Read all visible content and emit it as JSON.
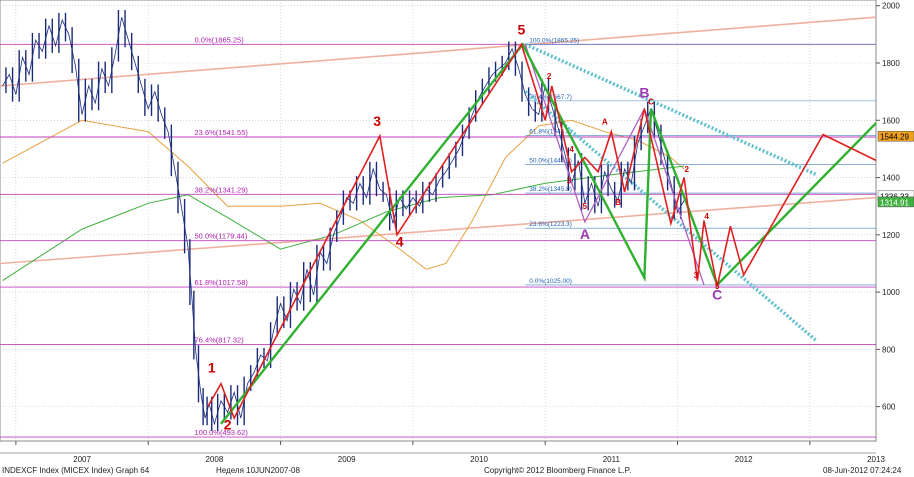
{
  "chart_data": {
    "type": "line",
    "title": "",
    "xlabel": "",
    "ylabel": "",
    "ylim": [
      480,
      2020
    ],
    "xlim": [
      2006.88,
      2013.5
    ],
    "x_ticks": [
      {
        "value": 2007,
        "label": "2007"
      },
      {
        "value": 2008,
        "label": "2008"
      },
      {
        "value": 2009,
        "label": "2009"
      },
      {
        "value": 2010,
        "label": "2010"
      },
      {
        "value": 2011,
        "label": "2011"
      },
      {
        "value": 2012,
        "label": "2012"
      },
      {
        "value": 2013,
        "label": "2013"
      }
    ],
    "y_ticks": [
      600,
      800,
      1000,
      1200,
      1400,
      1600,
      1800,
      2000
    ],
    "price_series": {
      "name": "",
      "color": "#1a2a7a",
      "points": [
        [
          2006.9,
          1720
        ],
        [
          2006.95,
          1760
        ],
        [
          2007.0,
          1690
        ],
        [
          2007.05,
          1820
        ],
        [
          2007.1,
          1760
        ],
        [
          2007.15,
          1880
        ],
        [
          2007.2,
          1840
        ],
        [
          2007.25,
          1930
        ],
        [
          2007.3,
          1860
        ],
        [
          2007.35,
          1950
        ],
        [
          2007.4,
          1900
        ],
        [
          2007.45,
          1790
        ],
        [
          2007.5,
          1620
        ],
        [
          2007.55,
          1720
        ],
        [
          2007.6,
          1660
        ],
        [
          2007.65,
          1780
        ],
        [
          2007.7,
          1720
        ],
        [
          2007.75,
          1830
        ],
        [
          2007.8,
          1960
        ],
        [
          2007.85,
          1880
        ],
        [
          2007.9,
          1800
        ],
        [
          2007.95,
          1720
        ],
        [
          2008.0,
          1640
        ],
        [
          2008.05,
          1700
        ],
        [
          2008.1,
          1620
        ],
        [
          2008.15,
          1560
        ],
        [
          2008.2,
          1430
        ],
        [
          2008.25,
          1300
        ],
        [
          2008.3,
          1160
        ],
        [
          2008.33,
          980
        ],
        [
          2008.36,
          790
        ],
        [
          2008.4,
          640
        ],
        [
          2008.43,
          560
        ],
        [
          2008.46,
          610
        ],
        [
          2008.5,
          540
        ],
        [
          2008.55,
          620
        ],
        [
          2008.6,
          580
        ],
        [
          2008.65,
          650
        ],
        [
          2008.7,
          560
        ],
        [
          2008.75,
          680
        ],
        [
          2008.8,
          720
        ],
        [
          2008.85,
          780
        ],
        [
          2008.9,
          760
        ],
        [
          2008.95,
          870
        ],
        [
          2009.0,
          960
        ],
        [
          2009.05,
          900
        ],
        [
          2009.1,
          1010
        ],
        [
          2009.15,
          960
        ],
        [
          2009.2,
          1080
        ],
        [
          2009.25,
          990
        ],
        [
          2009.3,
          1140
        ],
        [
          2009.35,
          1100
        ],
        [
          2009.4,
          1200
        ],
        [
          2009.45,
          1260
        ],
        [
          2009.5,
          1330
        ],
        [
          2009.55,
          1310
        ],
        [
          2009.6,
          1380
        ],
        [
          2009.65,
          1330
        ],
        [
          2009.7,
          1430
        ],
        [
          2009.75,
          1360
        ],
        [
          2009.8,
          1340
        ],
        [
          2009.85,
          1240
        ],
        [
          2009.9,
          1330
        ],
        [
          2009.95,
          1290
        ],
        [
          2010.0,
          1330
        ],
        [
          2010.05,
          1300
        ],
        [
          2010.1,
          1360
        ],
        [
          2010.15,
          1340
        ],
        [
          2010.2,
          1390
        ],
        [
          2010.25,
          1420
        ],
        [
          2010.3,
          1460
        ],
        [
          2010.35,
          1500
        ],
        [
          2010.4,
          1560
        ],
        [
          2010.45,
          1620
        ],
        [
          2010.5,
          1680
        ],
        [
          2010.55,
          1720
        ],
        [
          2010.6,
          1760
        ],
        [
          2010.65,
          1780
        ],
        [
          2010.7,
          1800
        ],
        [
          2010.75,
          1850
        ],
        [
          2010.8,
          1780
        ],
        [
          2010.85,
          1690
        ],
        [
          2010.9,
          1640
        ],
        [
          2010.95,
          1620
        ],
        [
          2011.0,
          1720
        ],
        [
          2011.05,
          1650
        ],
        [
          2011.1,
          1570
        ],
        [
          2011.15,
          1480
        ],
        [
          2011.2,
          1380
        ],
        [
          2011.25,
          1460
        ],
        [
          2011.3,
          1310
        ],
        [
          2011.35,
          1380
        ],
        [
          2011.4,
          1300
        ],
        [
          2011.45,
          1420
        ],
        [
          2011.5,
          1360
        ],
        [
          2011.55,
          1320
        ],
        [
          2011.6,
          1430
        ],
        [
          2011.65,
          1380
        ],
        [
          2011.7,
          1520
        ],
        [
          2011.75,
          1580
        ],
        [
          2011.8,
          1640
        ],
        [
          2011.85,
          1560
        ],
        [
          2011.9,
          1470
        ],
        [
          2011.95,
          1380
        ],
        [
          2012.0,
          1280
        ],
        [
          2012.05,
          1320
        ]
      ]
    },
    "moving_averages": [
      {
        "name": "",
        "color": "#e8a040",
        "points": [
          [
            2006.9,
            1450
          ],
          [
            2007.5,
            1600
          ],
          [
            2008.0,
            1560
          ],
          [
            2008.3,
            1440
          ],
          [
            2008.6,
            1300
          ],
          [
            2009.0,
            1300
          ],
          [
            2009.3,
            1310
          ],
          [
            2009.6,
            1250
          ],
          [
            2009.9,
            1150
          ],
          [
            2010.1,
            1080
          ],
          [
            2010.25,
            1100
          ],
          [
            2010.45,
            1250
          ],
          [
            2010.7,
            1470
          ],
          [
            2010.95,
            1580
          ],
          [
            2011.2,
            1600
          ],
          [
            2011.45,
            1560
          ],
          [
            2011.7,
            1530
          ],
          [
            2011.95,
            1470
          ],
          [
            2012.05,
            1430
          ]
        ]
      },
      {
        "name": "",
        "color": "#40b040",
        "points": [
          [
            2006.9,
            1040
          ],
          [
            2007.5,
            1220
          ],
          [
            2008.0,
            1310
          ],
          [
            2008.3,
            1340
          ],
          [
            2008.6,
            1260
          ],
          [
            2009.0,
            1150
          ],
          [
            2009.4,
            1200
          ],
          [
            2009.8,
            1280
          ],
          [
            2010.2,
            1330
          ],
          [
            2010.6,
            1340
          ],
          [
            2011.0,
            1380
          ],
          [
            2011.5,
            1410
          ],
          [
            2012.05,
            1440
          ]
        ]
      }
    ],
    "trendlines": [
      {
        "name": "",
        "color": "#f0b0a0",
        "points": [
          [
            2006.88,
            1100
          ],
          [
            2013.5,
            1330
          ]
        ]
      },
      {
        "name": "",
        "color": "#f0b0a0",
        "points": [
          [
            2006.88,
            1720
          ],
          [
            2013.5,
            1960
          ]
        ]
      }
    ],
    "fibonacci_levels": [
      {
        "label": "0.0%(1865.25)",
        "value": 1865.25
      },
      {
        "label": "23.6%(1541.55)",
        "value": 1541.55
      },
      {
        "label": "38.2%(1341.29)",
        "value": 1341.29
      },
      {
        "label": "50.0%(1179.44)",
        "value": 1179.44
      },
      {
        "label": "61.8%(1017.58)",
        "value": 1017.58
      },
      {
        "label": "76.4%(817.32)",
        "value": 817.32
      },
      {
        "label": "100.0%(493.62)",
        "value": 493.62
      }
    ],
    "fibonacci_levels_2": [
      {
        "label": "100.0%(1865.25)",
        "value": 1865.25
      },
      {
        "label": "76.4%(1667.7)",
        "value": 1667.7
      },
      {
        "label": "61.8%(1546.6)",
        "value": 1546.6
      },
      {
        "label": "50.0%(1445.3)",
        "value": 1445.3
      },
      {
        "label": "38.2%(1345.8)",
        "value": 1345.8
      },
      {
        "label": "23.6%(1223.3)",
        "value": 1223.3
      },
      {
        "label": "0.0%(1025.00)",
        "value": 1025.0
      }
    ],
    "green_wave_path": [
      [
        2008.55,
        540
      ],
      [
        2010.83,
        1865
      ],
      [
        2011.75,
        1050
      ],
      [
        2011.8,
        1640
      ],
      [
        2012.3,
        1025
      ],
      [
        2013.5,
        1590
      ]
    ],
    "red_wave_path": [
      [
        2008.45,
        600
      ],
      [
        2008.55,
        680
      ],
      [
        2008.65,
        560
      ],
      [
        2009.75,
        1545
      ],
      [
        2009.88,
        1200
      ],
      [
        2010.82,
        1865
      ],
      [
        2011.0,
        1600
      ],
      [
        2011.05,
        1720
      ],
      [
        2011.2,
        1420
      ],
      [
        2011.3,
        1470
      ],
      [
        2011.4,
        1420
      ],
      [
        2011.5,
        1560
      ],
      [
        2011.6,
        1350
      ],
      [
        2011.75,
        1640
      ],
      [
        2011.95,
        1240
      ],
      [
        2012.05,
        1400
      ],
      [
        2012.15,
        1040
      ],
      [
        2012.2,
        1250
      ],
      [
        2012.3,
        1020
      ],
      [
        2012.4,
        1230
      ],
      [
        2012.5,
        1060
      ],
      [
        2013.1,
        1550
      ],
      [
        2013.5,
        1460
      ]
    ],
    "violet_wave_path": [
      [
        2010.85,
        1865
      ],
      [
        2011.3,
        1245
      ],
      [
        2011.75,
        1640
      ],
      [
        2012.2,
        1025
      ]
    ],
    "channel_lines": [
      {
        "color": "#60c0d0",
        "points": [
          [
            2010.85,
            1865
          ],
          [
            2013.05,
            1410
          ]
        ]
      },
      {
        "color": "#60c0d0",
        "points": [
          [
            2010.85,
            1700
          ],
          [
            2013.05,
            830
          ]
        ]
      }
    ],
    "wave_labels": [
      {
        "text": "1",
        "x": 2008.48,
        "y": 720,
        "color": "#cc0000"
      },
      {
        "text": "2",
        "x": 2008.6,
        "y": 520,
        "color": "#cc0000"
      },
      {
        "text": "3",
        "x": 2009.73,
        "y": 1580,
        "color": "#cc0000"
      },
      {
        "text": "4",
        "x": 2009.9,
        "y": 1160,
        "color": "#cc0000"
      },
      {
        "text": "5",
        "x": 2010.82,
        "y": 1900,
        "color": "#cc0000"
      },
      {
        "text": "A",
        "x": 2011.3,
        "y": 1185,
        "color": "#9a3ab0"
      },
      {
        "text": "B",
        "x": 2011.75,
        "y": 1680,
        "color": "#9a3ab0"
      },
      {
        "text": "C",
        "x": 2012.3,
        "y": 975,
        "color": "#9a3ab0"
      }
    ],
    "minor_labels": [
      {
        "text": "2",
        "x": 2011.03,
        "y": 1745
      },
      {
        "text": "3",
        "x": 2011.18,
        "y": 1380
      },
      {
        "text": "4",
        "x": 2011.2,
        "y": 1490
      },
      {
        "text": "5",
        "x": 2011.3,
        "y": 1290
      },
      {
        "text": "A",
        "x": 2011.45,
        "y": 1585
      },
      {
        "text": "B",
        "x": 2011.55,
        "y": 1305
      },
      {
        "text": "C",
        "x": 2011.8,
        "y": 1655
      },
      {
        "text": "2",
        "x": 2012.07,
        "y": 1420
      },
      {
        "text": "3",
        "x": 2012.14,
        "y": 1050
      },
      {
        "text": "4",
        "x": 2012.22,
        "y": 1255
      },
      {
        "text": "5",
        "x": 2012.3,
        "y": 1010
      }
    ],
    "price_tags": [
      {
        "text": "1544.29",
        "value": 1544.29,
        "bg": "#f0a020",
        "fg": "#000000"
      },
      {
        "text": "1336.33",
        "value": 1336.33,
        "bg": "#ffffff",
        "fg": "#000000"
      },
      {
        "text": "1314.91",
        "value": 1314.91,
        "bg": "#40b040",
        "fg": "#ffffff"
      }
    ],
    "grid": true
  },
  "footer": {
    "left": "INDEXCF Index (MICEX Index) Graph 64",
    "center_left": "Неделя 10JUN2007-08",
    "center": "Copyright© 2012 Bloomberg Finance L.P.",
    "right": "08-Jun-2012 07:24:24"
  }
}
